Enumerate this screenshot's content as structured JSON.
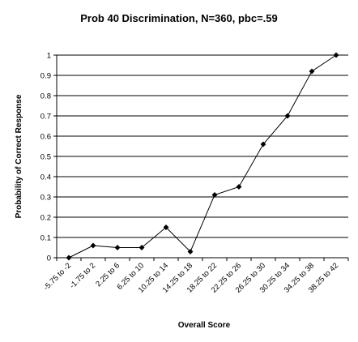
{
  "chart_data": {
    "type": "line",
    "title": "Prob 40 Discrimination, N=360, pbc=.59",
    "xlabel": "Overall Score",
    "ylabel": "Probability of Correct Response",
    "categories": [
      "-5.75 to -2",
      "-1.75 to 2",
      "2.25 to 6",
      "6.25 to 10",
      "10.25 to 14",
      "14.25 to 18",
      "18.25 to 22",
      "22.25 to 26",
      "26.25 to 30",
      "30.25 to 34",
      "34.25 to 38",
      "38.25 to 42"
    ],
    "x_tick_labels": [
      "-5.75 to -2",
      "-1.75 to 2",
      "2.25 to 6",
      "6.25 to 10",
      "10.25 to 14",
      "14.25 to 18",
      "18.25 to 22",
      "22.25 to 26",
      "26.25 to 30",
      "30.25 to 34",
      "34.25 to 38",
      "38.25 to 42"
    ],
    "values": [
      0.0,
      0.06,
      0.05,
      0.05,
      0.15,
      0.03,
      0.31,
      0.35,
      0.56,
      0.7,
      0.92,
      1.0
    ],
    "ylim": [
      0,
      1
    ],
    "yticks": [
      0,
      0.1,
      0.2,
      0.3,
      0.4,
      0.5,
      0.6,
      0.7,
      0.8,
      0.9,
      1
    ],
    "ytick_labels": [
      "0",
      "0.1",
      "0.2",
      "0.3",
      "0.4",
      "0.5",
      "0.6",
      "0.7",
      "0.8",
      "0.9",
      "1"
    ],
    "grid": "horizontal",
    "legend": "none",
    "marker": "diamond",
    "colors": {
      "line": "#000000",
      "grid": "#000000",
      "background": "#ffffff"
    }
  }
}
